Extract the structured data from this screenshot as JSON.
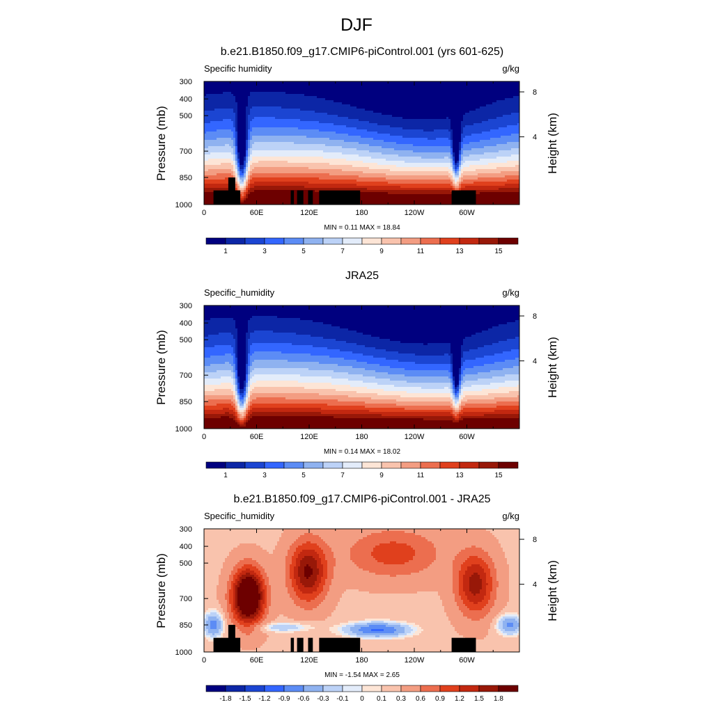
{
  "figure": {
    "title": "DJF"
  },
  "chart_data": [
    {
      "type": "heatmap",
      "title": "b.e21.B1850.f09_g17.CMIP6-piControl.001 (yrs 601-625)",
      "left_label": "Specific humidity",
      "right_label": "g/kg",
      "ylabel": "Pressure (mb)",
      "ylabel_right": "Height (km)",
      "x_ticks": [
        "0",
        "60E",
        "120E",
        "180",
        "120W",
        "60W"
      ],
      "y_ticks": [
        "300",
        "400",
        "500",
        "700",
        "850",
        "1000"
      ],
      "y_ticks_right": [
        "8",
        "4"
      ],
      "x_range": [
        0,
        360
      ],
      "y_range": [
        1000,
        300
      ],
      "stats": "MIN =   0.11  MAX =  18.84",
      "min": 0.11,
      "max": 18.84,
      "colorbar": {
        "labels": [
          "1",
          "3",
          "5",
          "7",
          "9",
          "11",
          "13",
          "15"
        ],
        "colors": [
          "#00007f",
          "#0c26a6",
          "#1b45d2",
          "#3366ff",
          "#5c8cf5",
          "#8fb2f0",
          "#bcd2f7",
          "#e3ecfa",
          "#fde5d6",
          "#f9c3ad",
          "#f39d82",
          "#ec6e4f",
          "#e0401d",
          "#c22810",
          "#981808",
          "#6d0000"
        ]
      },
      "has_topography_mask": true
    },
    {
      "type": "heatmap",
      "title": "JRA25",
      "left_label": "Specific_humidity",
      "right_label": "g/kg",
      "ylabel": "Pressure (mb)",
      "ylabel_right": "Height (km)",
      "x_ticks": [
        "0",
        "60E",
        "120E",
        "180",
        "120W",
        "60W"
      ],
      "y_ticks": [
        "300",
        "400",
        "500",
        "700",
        "850",
        "1000"
      ],
      "y_ticks_right": [
        "8",
        "4"
      ],
      "x_range": [
        0,
        360
      ],
      "y_range": [
        1000,
        300
      ],
      "stats": "MIN =   0.14  MAX =  18.02",
      "min": 0.14,
      "max": 18.02,
      "colorbar": {
        "labels": [
          "1",
          "3",
          "5",
          "7",
          "9",
          "11",
          "13",
          "15"
        ],
        "colors": [
          "#00007f",
          "#0c26a6",
          "#1b45d2",
          "#3366ff",
          "#5c8cf5",
          "#8fb2f0",
          "#bcd2f7",
          "#e3ecfa",
          "#fde5d6",
          "#f9c3ad",
          "#f39d82",
          "#ec6e4f",
          "#e0401d",
          "#c22810",
          "#981808",
          "#6d0000"
        ]
      },
      "has_topography_mask": false
    },
    {
      "type": "heatmap",
      "title": "b.e21.B1850.f09_g17.CMIP6-piControl.001 - JRA25",
      "left_label": "Specific_humidity",
      "right_label": "g/kg",
      "ylabel": "Pressure (mb)",
      "ylabel_right": "Height (km)",
      "x_ticks": [
        "0",
        "60E",
        "120E",
        "180",
        "120W",
        "60W"
      ],
      "y_ticks": [
        "300",
        "400",
        "500",
        "700",
        "850",
        "1000"
      ],
      "y_ticks_right": [
        "8",
        "4"
      ],
      "x_range": [
        0,
        360
      ],
      "y_range": [
        1000,
        300
      ],
      "stats": "MIN =  -1.54  MAX =   2.65",
      "min": -1.54,
      "max": 2.65,
      "colorbar": {
        "labels": [
          "-1.8",
          "-1.5",
          "-1.2",
          "-0.9",
          "-0.6",
          "-0.3",
          "-0.1",
          "0",
          "0.1",
          "0.3",
          "0.6",
          "0.9",
          "1.2",
          "1.5",
          "1.8"
        ],
        "colors": [
          "#00007f",
          "#0c26a6",
          "#1b45d2",
          "#3366ff",
          "#5c8cf5",
          "#8fb2f0",
          "#bcd2f7",
          "#e3ecfa",
          "#fde5d6",
          "#f9c3ad",
          "#f39d82",
          "#ec6e4f",
          "#e0401d",
          "#c22810",
          "#981808",
          "#6d0000"
        ]
      },
      "has_topography_mask": true
    }
  ]
}
